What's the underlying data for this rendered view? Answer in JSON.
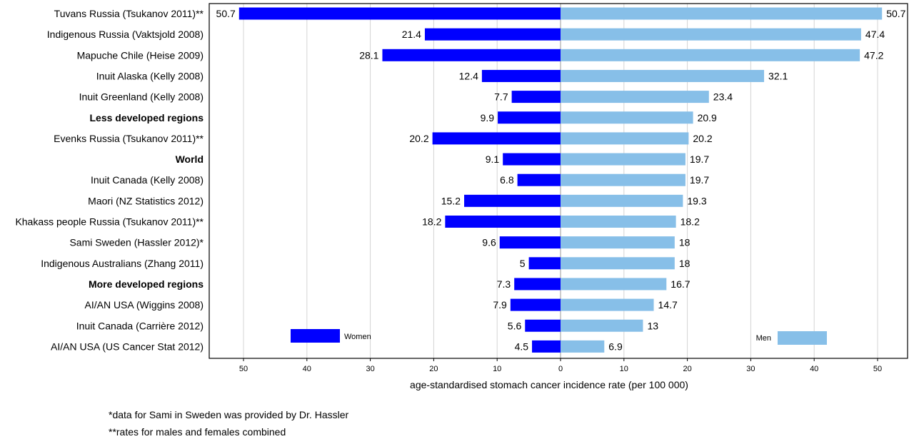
{
  "chart_data": {
    "type": "bar",
    "orientation": "horizontal-diverging",
    "xlabel": "age-standardised stomach cancer incidence rate (per 100 000)",
    "xlim": [
      -52,
      55
    ],
    "ticks": [
      50,
      40,
      30,
      20,
      10,
      0,
      10,
      20,
      30,
      40,
      50
    ],
    "grid": true,
    "categories": [
      "Tuvans Russia (Tsukanov 2011)**",
      "Indigenous Russia (Vaktsjold 2008)",
      "Mapuche Chile (Heise 2009)",
      "Inuit Alaska (Kelly 2008)",
      "Inuit Greenland (Kelly 2008)",
      "Less developed regions",
      "Evenks Russia (Tsukanov 2011)**",
      "World",
      "Inuit Canada (Kelly 2008)",
      "Maori (NZ Statistics 2012)",
      "Khakass people Russia (Tsukanov 2011)**",
      "Sami Sweden (Hassler 2012)*",
      "Indigenous Australians (Zhang 2011)",
      "More developed regions",
      "AI/AN USA (Wiggins 2008)",
      "Inuit Canada (Carrière 2012)",
      "AI/AN USA (US Cancer Stat 2012)"
    ],
    "bold_categories": [
      "Less developed regions",
      "World",
      "More developed regions"
    ],
    "series": [
      {
        "name": "Women",
        "color": "#0000ff",
        "side": "left",
        "values": [
          50.7,
          21.4,
          28.1,
          12.4,
          7.7,
          9.9,
          20.2,
          9.1,
          6.8,
          15.2,
          18.2,
          9.6,
          5,
          7.3,
          7.9,
          5.6,
          4.5
        ],
        "labels": [
          "50.7",
          "21.4",
          "28.1",
          "12.4",
          "7.7",
          "9.9",
          "20.2",
          "9.1",
          "6.8",
          "15.2",
          "18.2",
          "9.6",
          "5",
          "7.3",
          "7.9",
          "5.6",
          "4.5"
        ]
      },
      {
        "name": "Men",
        "color": "#87bfe8",
        "side": "right",
        "values": [
          50.7,
          47.4,
          47.2,
          32.1,
          23.4,
          20.9,
          20.2,
          19.7,
          19.7,
          19.3,
          18.2,
          18,
          18,
          16.7,
          14.7,
          13,
          6.9
        ],
        "labels": [
          "50.7",
          "47.4",
          "47.2",
          "32.1",
          "23.4",
          "20.9",
          "20.2",
          "19.7",
          "19.7",
          "19.3",
          "18.2",
          "18",
          "18",
          "16.7",
          "14.7",
          "13",
          "6.9"
        ]
      }
    ],
    "legend": [
      {
        "label": "Women",
        "color": "#0000ff",
        "placement": "bottom-left"
      },
      {
        "label": "Men",
        "color": "#87bfe8",
        "placement": "bottom-right"
      }
    ]
  },
  "footnotes": [
    "*data for Sami in Sweden was provided by Dr. Hassler",
    "**rates for males and females combined"
  ]
}
